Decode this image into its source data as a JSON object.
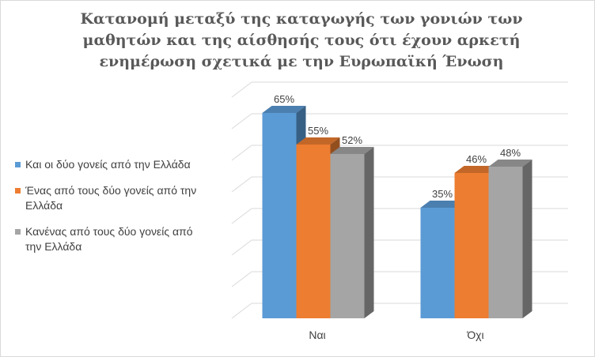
{
  "chart_data": {
    "type": "bar",
    "title": "Κατανομή μεταξύ της καταγωγής των γονιών των μαθητών και της αίσθησής τους ότι έχουν αρκετή ενημέρωση σχετικά με την Ευρωπαϊκή Ένωση",
    "title_lines": [
      "Κατανομή μεταξύ της καταγωγής των γονιών των",
      "μαθητών και της αίσθησής τους ότι έχουν αρκετή",
      "ενημέρωση σχετικά με την Ευρωπαϊκή Ένωση"
    ],
    "categories": [
      "Ναι",
      "Όχι"
    ],
    "series": [
      {
        "name": "Και οι δύο γονείς από την Ελλάδα",
        "values": [
          65,
          35
        ],
        "labels": [
          "65%",
          "35%"
        ],
        "color": "#5b9bd5"
      },
      {
        "name": "Ένας από τους δύο γονείς από την Ελλάδα",
        "values": [
          55,
          46
        ],
        "labels": [
          "55%",
          "46%"
        ],
        "color": "#ed7d31"
      },
      {
        "name": "Κανένας από τους δύο γονείς από την Ελλάδα",
        "values": [
          52,
          48
        ],
        "labels": [
          "52%",
          "48%"
        ],
        "color": "#a5a5a5"
      }
    ],
    "ylim": [
      0,
      70
    ],
    "grid": true,
    "legend_position": "left",
    "three_d": true
  }
}
